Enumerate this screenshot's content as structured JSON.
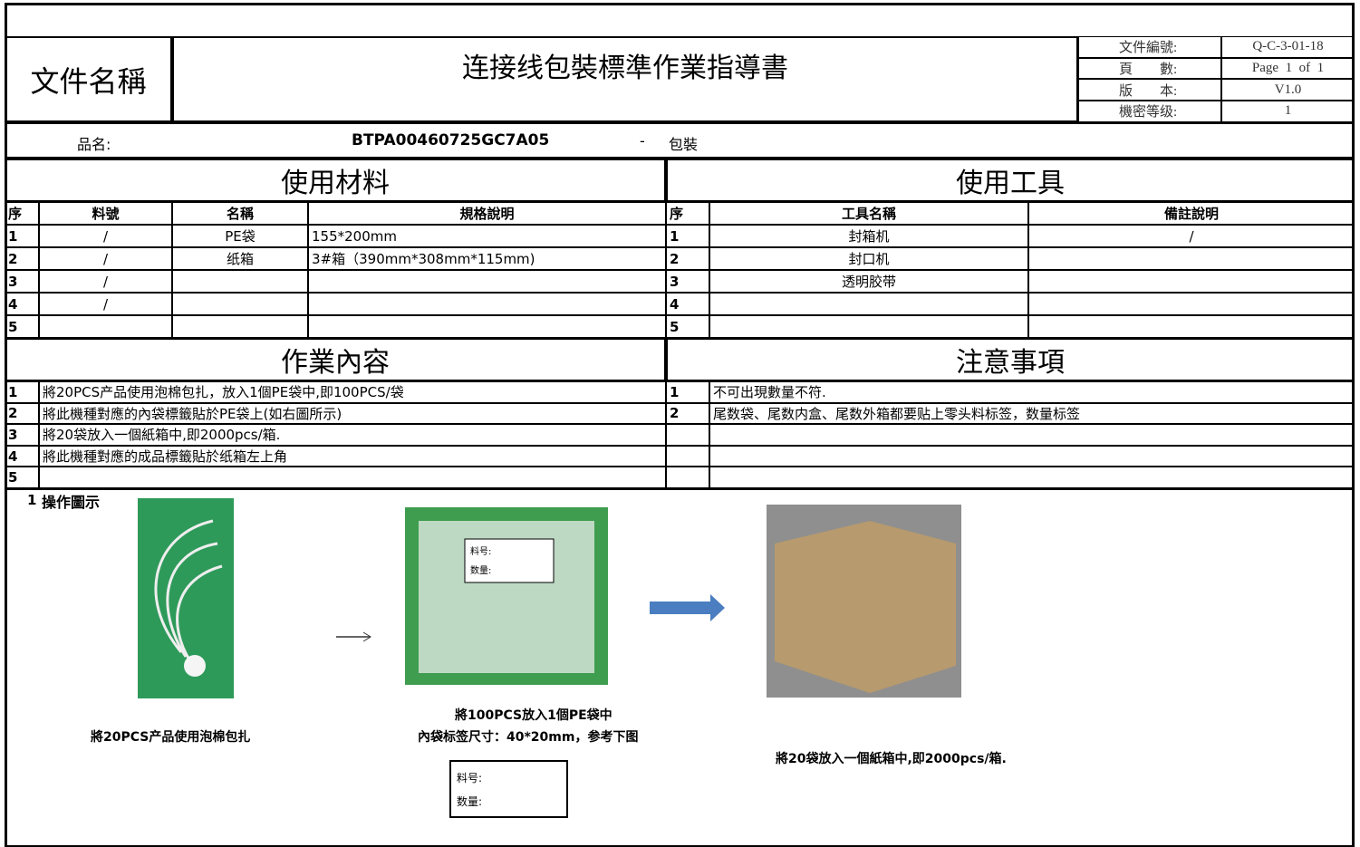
{
  "header": {
    "label": "文件名稱",
    "title": "连接线包裝標準作業指導書",
    "meta": [
      [
        "文件編號:",
        "Q-C-3-01-18"
      ],
      [
        "頁　　數:",
        "Page  1  of  1"
      ],
      [
        "版　　本:",
        "V1.0"
      ],
      [
        "機密等级:",
        "1"
      ]
    ]
  },
  "product": {
    "label": "品名:",
    "code": "BTPA00460725GC7A05",
    "dash": "-",
    "process": "包裝"
  },
  "materials": {
    "title": "使用材料",
    "headers": [
      "序",
      "料號",
      "名稱",
      "規格說明"
    ],
    "rows": [
      [
        "1",
        "/",
        "PE袋",
        "155*200mm"
      ],
      [
        "2",
        "/",
        "纸箱",
        "3#箱（390mm*308mm*115mm)"
      ],
      [
        "3",
        "/",
        null,
        null
      ],
      [
        "4",
        "/",
        null,
        null
      ],
      [
        "5",
        null,
        null,
        null
      ]
    ]
  },
  "tools": {
    "title": "使用工具",
    "headers": [
      "序",
      "工具名稱",
      "備註說明"
    ],
    "rows": [
      [
        "1",
        "封箱机",
        "/"
      ],
      [
        "2",
        "封口机",
        null
      ],
      [
        "3",
        "透明胶带",
        null
      ],
      [
        "4",
        null,
        null
      ],
      [
        "5",
        null,
        null
      ]
    ]
  },
  "work": {
    "title": "作業內容",
    "rows": [
      [
        "1",
        "將20PCS产品使用泡棉包扎，放入1個PE袋中,即100PCS/袋"
      ],
      [
        "2",
        "將此機種對應的內袋標籤貼於PE袋上(如右圖所示)"
      ],
      [
        "3",
        "將20袋放入一個紙箱中,即2000pcs/箱."
      ],
      [
        "4",
        "將此機種對應的成品標籤貼於纸箱左上角"
      ],
      [
        "5",
        null
      ]
    ]
  },
  "notes": {
    "title": "注意事項",
    "rows": [
      [
        "1",
        "不可出現數量不符."
      ],
      [
        "2",
        "尾数袋、尾数内盒、尾数外箱都要贴上零头料标签，数量标签"
      ],
      [
        null,
        null
      ],
      [
        null,
        null
      ],
      [
        null,
        null
      ]
    ]
  },
  "illustration": {
    "number": "1",
    "title": "操作圖示",
    "bag_label": [
      "料号:",
      "数量:"
    ],
    "captions": [
      "將20PCS产品使用泡棉包扎",
      "將100PCS放入1個PE袋中",
      "內袋标签尺寸：40*20mm，参考下图",
      "將20袋放入一個紙箱中,即2000pcs/箱."
    ],
    "label_sample": [
      "料号:",
      "数量:"
    ]
  }
}
